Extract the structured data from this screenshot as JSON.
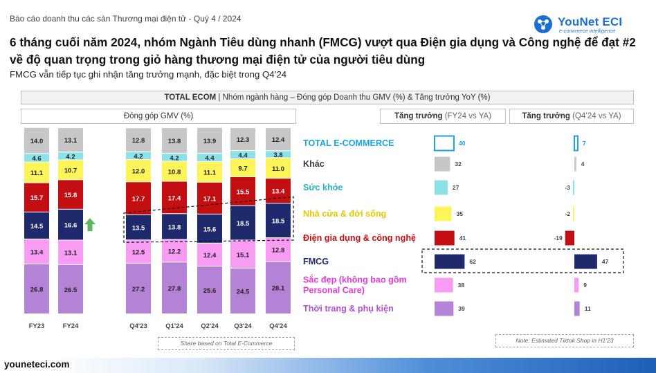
{
  "header": {
    "breadcrumb": "Báo cáo doanh thu các sàn Thương mại điện tử - Quý 4 / 2024",
    "logo_name": "YouNet ECI",
    "logo_tagline": "e-commerce intelligence",
    "headline": "6 tháng cuối năm 2024, nhóm Ngành Tiêu dùng nhanh (FMCG) vượt qua Điện gia dụng và Công nghệ để đạt #2 về độ quan trọng  trong giỏ hàng thương mại điện tử của người tiêu dùng",
    "subtitle": "FMCG vẫn tiếp tục ghi nhận tăng trưởng mạnh, đặc biệt trong Q4’24"
  },
  "banner": {
    "bold": "TOTAL ECOM",
    "rest": " | Nhóm ngành hàng – Đóng góp Doanh thu GMV (%) & Tăng trưởng YoY (%)"
  },
  "panels": {
    "share_title": "Đóng góp GMV (%)",
    "growth_fy_title": "Tăng trưởng",
    "growth_fy_suffix": " (FY24 vs YA)",
    "growth_q4_title": "Tăng trưởng",
    "growth_q4_suffix": " (Q4’24 vs YA)"
  },
  "notes": {
    "share_note": "Share based on Total E-Commerce",
    "tiktok_note": "Note: Estimated Tiktok Shop in H1’23"
  },
  "footer": {
    "website": "youneteci.com"
  },
  "colors": {
    "fashion": "#b583d6",
    "beauty": "#f79cf2",
    "fmcg": "#1f2a6d",
    "electronics": "#c40f12",
    "home": "#fdf45a",
    "health": "#8ce2e6",
    "other": "#c7c7c7",
    "total": "#1aa3dd",
    "growth_arrow": "#5cb85c"
  },
  "chart_data": [
    {
      "type": "bar",
      "stacked": true,
      "title": "Đóng góp GMV (%)",
      "categories": [
        "FY23",
        "FY24",
        "Q4'23",
        "Q1'24",
        "Q2'24",
        "Q3'24",
        "Q4'24"
      ],
      "series": [
        {
          "name": "Thời trang & phụ kiện",
          "color": "#b583d6",
          "values": [
            26.8,
            26.5,
            27.2,
            27.8,
            25.6,
            24.5,
            28.1
          ]
        },
        {
          "name": "Sắc đẹp (không bao gồm Personal Care)",
          "color": "#f79cf2",
          "values": [
            13.4,
            13.1,
            12.5,
            12.2,
            12.4,
            15.1,
            12.8
          ]
        },
        {
          "name": "FMCG",
          "color": "#1f2a6d",
          "values": [
            14.5,
            16.6,
            13.5,
            13.8,
            15.6,
            18.5,
            18.5
          ]
        },
        {
          "name": "Điện gia dụng & công nghệ",
          "color": "#c40f12",
          "values": [
            15.7,
            15.8,
            17.7,
            17.4,
            17.1,
            15.5,
            13.4
          ]
        },
        {
          "name": "Nhà cửa & đời sống",
          "color": "#fdf45a",
          "values": [
            11.1,
            10.7,
            12.0,
            10.8,
            11.1,
            9.7,
            11.0
          ]
        },
        {
          "name": "Sức khỏe",
          "color": "#8ce2e6",
          "values": [
            4.6,
            4.2,
            4.2,
            4.2,
            4.4,
            4.4,
            3.8
          ]
        },
        {
          "name": "Khác",
          "color": "#c7c7c7",
          "values": [
            14.0,
            13.1,
            12.8,
            13.8,
            13.9,
            12.3,
            12.4
          ]
        }
      ],
      "ylim": [
        0,
        100
      ],
      "annotations": [
        "upward arrow beside FY24 FMCG",
        "dashed trend box around FMCG Q4'23–Q4'24"
      ]
    },
    {
      "type": "bar",
      "orientation": "horizontal",
      "title": "Tăng trưởng (FY24 vs YA)",
      "categories": [
        "TOTAL E-COMMERCE",
        "Khác",
        "Sức khỏe",
        "Nhà cửa & đời sống",
        "Điện gia dụng & công nghệ",
        "FMCG",
        "Sắc đẹp (không bao gồm Personal Care)",
        "Thời trang & phụ kiện"
      ],
      "values": [
        40,
        32,
        27,
        35,
        41,
        62,
        38,
        39
      ],
      "colors": [
        "#1aa3dd",
        "#c7c7c7",
        "#8ce2e6",
        "#fdf45a",
        "#c40f12",
        "#1f2a6d",
        "#f79cf2",
        "#b583d6"
      ]
    },
    {
      "type": "bar",
      "orientation": "horizontal",
      "title": "Tăng trưởng (Q4’24 vs YA)",
      "categories": [
        "TOTAL E-COMMERCE",
        "Khác",
        "Sức khỏe",
        "Nhà cửa & đời sống",
        "Điện gia dụng & công nghệ",
        "FMCG",
        "Sắc đẹp (không bao gồm Personal Care)",
        "Thời trang & phụ kiện"
      ],
      "values": [
        7,
        4,
        -3,
        -2,
        -19,
        47,
        9,
        11
      ],
      "colors": [
        "#1aa3dd",
        "#c7c7c7",
        "#8ce2e6",
        "#fdf45a",
        "#c40f12",
        "#1f2a6d",
        "#f79cf2",
        "#b583d6"
      ]
    }
  ],
  "categories_legend": [
    {
      "label": "TOTAL E-COMMERCE",
      "color": "#1aa3dd",
      "bold": true
    },
    {
      "label": "Khác",
      "color": "#3a3a3a",
      "bold": true
    },
    {
      "label": "Sức khỏe",
      "color": "#28b5c8",
      "bold": true
    },
    {
      "label": "Nhà cửa & đời sống",
      "color": "#e6c800",
      "bold": true
    },
    {
      "label": "Điện gia dụng & công nghệ",
      "color": "#c40f12",
      "bold": true
    },
    {
      "label": "FMCG",
      "color": "#1f2a6d",
      "bold": true
    },
    {
      "label": "Sắc đẹp (không bao gồm\nPersonal Care)",
      "color": "#e63ad8",
      "bold": true
    },
    {
      "label": "Thời trang & phụ kiện",
      "color": "#b04fd0",
      "bold": true
    }
  ]
}
